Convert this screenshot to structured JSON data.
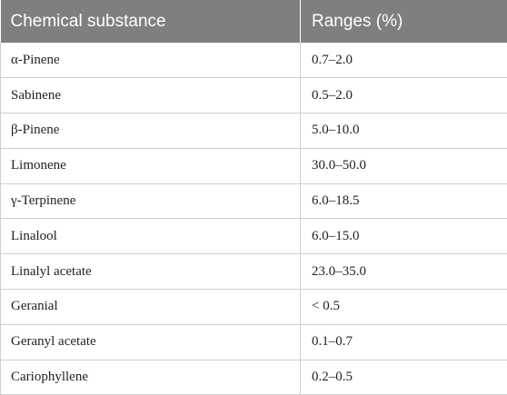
{
  "table": {
    "headers": {
      "substance": "Chemical substance",
      "ranges": "Ranges (%)"
    },
    "rows": [
      {
        "substance": "α-Pinene",
        "range": "0.7–2.0"
      },
      {
        "substance": "Sabinene",
        "range": "0.5–2.0"
      },
      {
        "substance": "β-Pinene",
        "range": "5.0–10.0"
      },
      {
        "substance": "Limonene",
        "range": "30.0–50.0"
      },
      {
        "substance": "γ-Terpinene",
        "range": "6.0–18.5"
      },
      {
        "substance": "Linalool",
        "range": "6.0–15.0"
      },
      {
        "substance": "Linalyl acetate",
        "range": "23.0–35.0"
      },
      {
        "substance": "Geranial",
        "range": "< 0.5"
      },
      {
        "substance": "Geranyl acetate",
        "range": "0.1–0.7"
      },
      {
        "substance": "Cariophyllene",
        "range": "0.2–0.5"
      }
    ]
  },
  "colors": {
    "header_bg": "#7f7f7f",
    "header_text": "#ffffff",
    "grid": "#cfcfcf"
  }
}
